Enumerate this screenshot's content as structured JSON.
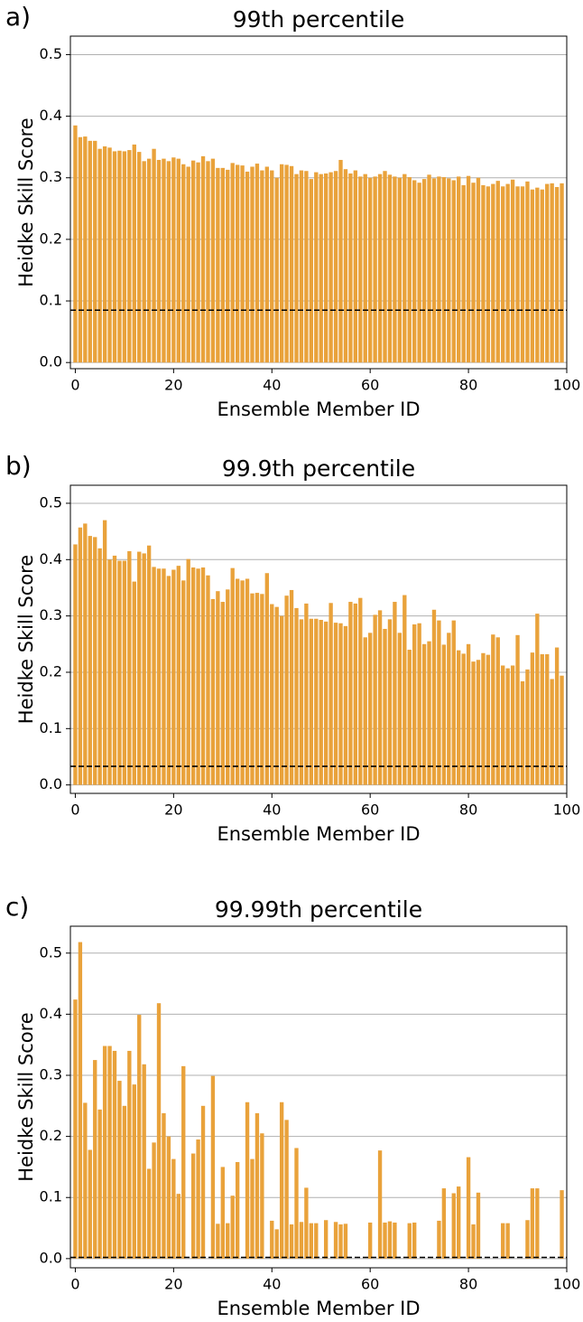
{
  "chart_data": [
    {
      "type": "bar",
      "panel_label": "a)",
      "title": "99th percentile",
      "x_label": "Ensemble Member ID",
      "y_label": "Heidke Skill Score",
      "color": "#e9a23b",
      "grid": true,
      "reference_line": 0.085,
      "xlim": [
        -1,
        100
      ],
      "xticks": [
        0,
        20,
        40,
        60,
        80,
        100
      ],
      "ylim": [
        -0.01,
        0.53
      ],
      "yticks": [
        {
          "value": 0,
          "label": "0.0"
        },
        {
          "value": 0.1,
          "label": "0.1"
        },
        {
          "value": 0.2,
          "label": "0.2"
        },
        {
          "value": 0.3,
          "label": "0.3"
        },
        {
          "value": 0.4,
          "label": "0.4"
        },
        {
          "value": 0.5,
          "label": "0.5"
        }
      ],
      "values": [
        0.385,
        0.366,
        0.367,
        0.36,
        0.36,
        0.347,
        0.351,
        0.349,
        0.343,
        0.344,
        0.343,
        0.345,
        0.354,
        0.342,
        0.327,
        0.331,
        0.347,
        0.329,
        0.331,
        0.327,
        0.333,
        0.331,
        0.322,
        0.318,
        0.328,
        0.325,
        0.335,
        0.327,
        0.331,
        0.316,
        0.316,
        0.313,
        0.324,
        0.321,
        0.32,
        0.31,
        0.318,
        0.323,
        0.312,
        0.318,
        0.312,
        0.3,
        0.322,
        0.321,
        0.319,
        0.306,
        0.312,
        0.311,
        0.298,
        0.309,
        0.306,
        0.307,
        0.309,
        0.311,
        0.329,
        0.314,
        0.307,
        0.312,
        0.302,
        0.306,
        0.3,
        0.302,
        0.306,
        0.311,
        0.305,
        0.302,
        0.3,
        0.306,
        0.301,
        0.296,
        0.292,
        0.298,
        0.305,
        0.299,
        0.302,
        0.301,
        0.299,
        0.296,
        0.302,
        0.288,
        0.303,
        0.292,
        0.3,
        0.288,
        0.286,
        0.29,
        0.295,
        0.286,
        0.29,
        0.297,
        0.286,
        0.286,
        0.294,
        0.281,
        0.284,
        0.281,
        0.29,
        0.291,
        0.285,
        0.291
      ]
    },
    {
      "type": "bar",
      "panel_label": "b)",
      "title": "99.9th percentile",
      "x_label": "Ensemble Member ID",
      "y_label": "Heidke Skill Score",
      "color": "#e9a23b",
      "grid": true,
      "reference_line": 0.033,
      "xlim": [
        -1,
        100
      ],
      "xticks": [
        0,
        20,
        40,
        60,
        80,
        100
      ],
      "ylim": [
        -0.015,
        0.532
      ],
      "yticks": [
        {
          "value": 0,
          "label": "0.0"
        },
        {
          "value": 0.1,
          "label": "0.1"
        },
        {
          "value": 0.2,
          "label": "0.2"
        },
        {
          "value": 0.3,
          "label": "0.3"
        },
        {
          "value": 0.4,
          "label": "0.4"
        },
        {
          "value": 0.5,
          "label": "0.5"
        }
      ],
      "values": [
        0.427,
        0.457,
        0.464,
        0.442,
        0.44,
        0.42,
        0.47,
        0.4,
        0.407,
        0.398,
        0.398,
        0.415,
        0.361,
        0.414,
        0.411,
        0.425,
        0.387,
        0.384,
        0.384,
        0.371,
        0.382,
        0.389,
        0.363,
        0.401,
        0.386,
        0.384,
        0.386,
        0.372,
        0.33,
        0.344,
        0.325,
        0.347,
        0.385,
        0.366,
        0.363,
        0.366,
        0.34,
        0.341,
        0.339,
        0.376,
        0.321,
        0.316,
        0.3,
        0.336,
        0.346,
        0.314,
        0.294,
        0.322,
        0.295,
        0.295,
        0.293,
        0.29,
        0.323,
        0.288,
        0.287,
        0.282,
        0.325,
        0.322,
        0.332,
        0.262,
        0.27,
        0.302,
        0.31,
        0.277,
        0.294,
        0.325,
        0.27,
        0.337,
        0.24,
        0.285,
        0.287,
        0.25,
        0.255,
        0.311,
        0.292,
        0.249,
        0.27,
        0.292,
        0.239,
        0.233,
        0.25,
        0.219,
        0.222,
        0.234,
        0.231,
        0.267,
        0.262,
        0.212,
        0.207,
        0.212,
        0.266,
        0.184,
        0.205,
        0.235,
        0.304,
        0.232,
        0.232,
        0.188,
        0.244,
        0.194
      ]
    },
    {
      "type": "bar",
      "panel_label": "c)",
      "title": "99.99th percentile",
      "x_label": "Ensemble Member ID",
      "y_label": "Heidke Skill Score",
      "color": "#e9a23b",
      "grid": true,
      "reference_line": 0.002,
      "xlim": [
        -1,
        100
      ],
      "xticks": [
        0,
        20,
        40,
        60,
        80,
        100
      ],
      "ylim": [
        -0.015,
        0.544
      ],
      "yticks": [
        {
          "value": 0,
          "label": "0.0"
        },
        {
          "value": 0.1,
          "label": "0.1"
        },
        {
          "value": 0.2,
          "label": "0.2"
        },
        {
          "value": 0.3,
          "label": "0.3"
        },
        {
          "value": 0.4,
          "label": "0.4"
        },
        {
          "value": 0.5,
          "label": "0.5"
        }
      ],
      "values": [
        0.424,
        0.518,
        0.255,
        0.178,
        0.325,
        0.244,
        0.348,
        0.348,
        0.34,
        0.291,
        0.25,
        0.34,
        0.285,
        0.399,
        0.318,
        0.147,
        0.19,
        0.418,
        0.238,
        0.2,
        0.163,
        0.106,
        0.315,
        0,
        0.172,
        0.195,
        0.25,
        0,
        0.299,
        0.057,
        0.15,
        0.058,
        0.103,
        0.158,
        0,
        0.256,
        0.163,
        0.238,
        0.205,
        0,
        0.062,
        0.048,
        0.256,
        0.227,
        0.056,
        0.181,
        0.06,
        0.116,
        0.058,
        0.058,
        0,
        0.063,
        0,
        0.06,
        0.056,
        0.057,
        0,
        0,
        0,
        0,
        0.059,
        0,
        0.177,
        0.059,
        0.061,
        0.059,
        0,
        0,
        0.058,
        0.059,
        0,
        0,
        0,
        0,
        0.062,
        0.115,
        0,
        0.107,
        0.118,
        0,
        0.166,
        0.056,
        0.108,
        0,
        0,
        0,
        0,
        0.058,
        0.058,
        0,
        0,
        0,
        0.063,
        0.115,
        0.115,
        0,
        0,
        0,
        0,
        0.112
      ]
    }
  ]
}
